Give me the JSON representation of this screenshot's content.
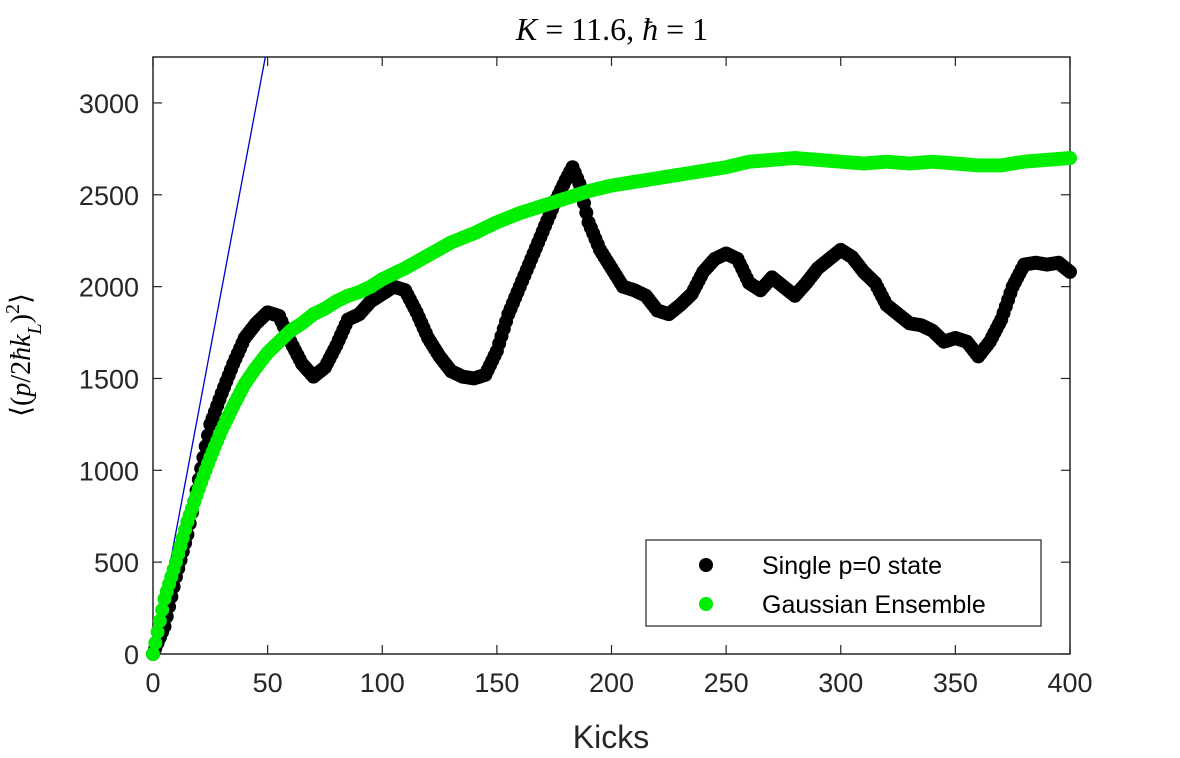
{
  "chart_data": {
    "type": "scatter",
    "title": "K = 11.6, ħ = 1",
    "xlabel": "Kicks",
    "ylabel": "⟨(p/2ħk_L)²⟩",
    "xlim": [
      0,
      400
    ],
    "ylim": [
      0,
      3250
    ],
    "xticks": [
      0,
      50,
      100,
      150,
      200,
      250,
      300,
      350,
      400
    ],
    "yticks": [
      0,
      500,
      1000,
      1500,
      2000,
      2500,
      3000
    ],
    "grid": false,
    "legend_position": "bottom-right",
    "reference_line": {
      "color": "#0000cc",
      "x": [
        0,
        49
      ],
      "y": [
        0,
        3250
      ]
    },
    "series": [
      {
        "name": "Single p=0 state",
        "color": "#000000",
        "points": [
          [
            0,
            0
          ],
          [
            5,
            150
          ],
          [
            10,
            420
          ],
          [
            15,
            650
          ],
          [
            20,
            950
          ],
          [
            25,
            1250
          ],
          [
            30,
            1420
          ],
          [
            35,
            1580
          ],
          [
            40,
            1720
          ],
          [
            45,
            1800
          ],
          [
            50,
            1860
          ],
          [
            55,
            1840
          ],
          [
            60,
            1700
          ],
          [
            65,
            1580
          ],
          [
            70,
            1510
          ],
          [
            75,
            1560
          ],
          [
            80,
            1680
          ],
          [
            85,
            1820
          ],
          [
            90,
            1850
          ],
          [
            95,
            1920
          ],
          [
            100,
            1960
          ],
          [
            105,
            2000
          ],
          [
            110,
            1980
          ],
          [
            115,
            1860
          ],
          [
            120,
            1720
          ],
          [
            125,
            1620
          ],
          [
            130,
            1540
          ],
          [
            135,
            1510
          ],
          [
            140,
            1500
          ],
          [
            145,
            1520
          ],
          [
            150,
            1650
          ],
          [
            155,
            1850
          ],
          [
            160,
            2000
          ],
          [
            165,
            2150
          ],
          [
            170,
            2300
          ],
          [
            175,
            2450
          ],
          [
            180,
            2580
          ],
          [
            183,
            2650
          ],
          [
            186,
            2560
          ],
          [
            190,
            2350
          ],
          [
            195,
            2200
          ],
          [
            200,
            2100
          ],
          [
            205,
            2000
          ],
          [
            210,
            1980
          ],
          [
            215,
            1950
          ],
          [
            220,
            1870
          ],
          [
            225,
            1850
          ],
          [
            230,
            1900
          ],
          [
            235,
            1960
          ],
          [
            240,
            2080
          ],
          [
            245,
            2150
          ],
          [
            250,
            2180
          ],
          [
            255,
            2150
          ],
          [
            260,
            2020
          ],
          [
            265,
            1980
          ],
          [
            270,
            2050
          ],
          [
            275,
            2000
          ],
          [
            280,
            1950
          ],
          [
            285,
            2020
          ],
          [
            290,
            2100
          ],
          [
            295,
            2150
          ],
          [
            300,
            2200
          ],
          [
            305,
            2160
          ],
          [
            310,
            2080
          ],
          [
            315,
            2020
          ],
          [
            320,
            1900
          ],
          [
            325,
            1850
          ],
          [
            330,
            1800
          ],
          [
            335,
            1790
          ],
          [
            340,
            1760
          ],
          [
            345,
            1700
          ],
          [
            350,
            1720
          ],
          [
            355,
            1700
          ],
          [
            360,
            1620
          ],
          [
            365,
            1700
          ],
          [
            370,
            1820
          ],
          [
            375,
            2000
          ],
          [
            380,
            2120
          ],
          [
            385,
            2130
          ],
          [
            390,
            2120
          ],
          [
            395,
            2130
          ],
          [
            400,
            2080
          ]
        ]
      },
      {
        "name": "Gaussian Ensemble",
        "color": "#00ee00",
        "points": [
          [
            0,
            0
          ],
          [
            5,
            300
          ],
          [
            10,
            500
          ],
          [
            15,
            720
          ],
          [
            20,
            900
          ],
          [
            25,
            1070
          ],
          [
            30,
            1220
          ],
          [
            35,
            1350
          ],
          [
            40,
            1470
          ],
          [
            45,
            1560
          ],
          [
            50,
            1640
          ],
          [
            55,
            1700
          ],
          [
            60,
            1760
          ],
          [
            65,
            1800
          ],
          [
            70,
            1850
          ],
          [
            75,
            1880
          ],
          [
            80,
            1920
          ],
          [
            85,
            1950
          ],
          [
            90,
            1970
          ],
          [
            95,
            2000
          ],
          [
            100,
            2040
          ],
          [
            110,
            2100
          ],
          [
            120,
            2170
          ],
          [
            130,
            2240
          ],
          [
            140,
            2290
          ],
          [
            150,
            2350
          ],
          [
            160,
            2400
          ],
          [
            170,
            2440
          ],
          [
            180,
            2480
          ],
          [
            190,
            2520
          ],
          [
            200,
            2550
          ],
          [
            210,
            2570
          ],
          [
            220,
            2590
          ],
          [
            230,
            2610
          ],
          [
            240,
            2630
          ],
          [
            250,
            2650
          ],
          [
            260,
            2680
          ],
          [
            270,
            2690
          ],
          [
            280,
            2700
          ],
          [
            290,
            2690
          ],
          [
            300,
            2680
          ],
          [
            310,
            2670
          ],
          [
            320,
            2680
          ],
          [
            330,
            2670
          ],
          [
            340,
            2680
          ],
          [
            350,
            2670
          ],
          [
            360,
            2660
          ],
          [
            370,
            2660
          ],
          [
            380,
            2680
          ],
          [
            390,
            2690
          ],
          [
            400,
            2700
          ]
        ]
      }
    ]
  }
}
